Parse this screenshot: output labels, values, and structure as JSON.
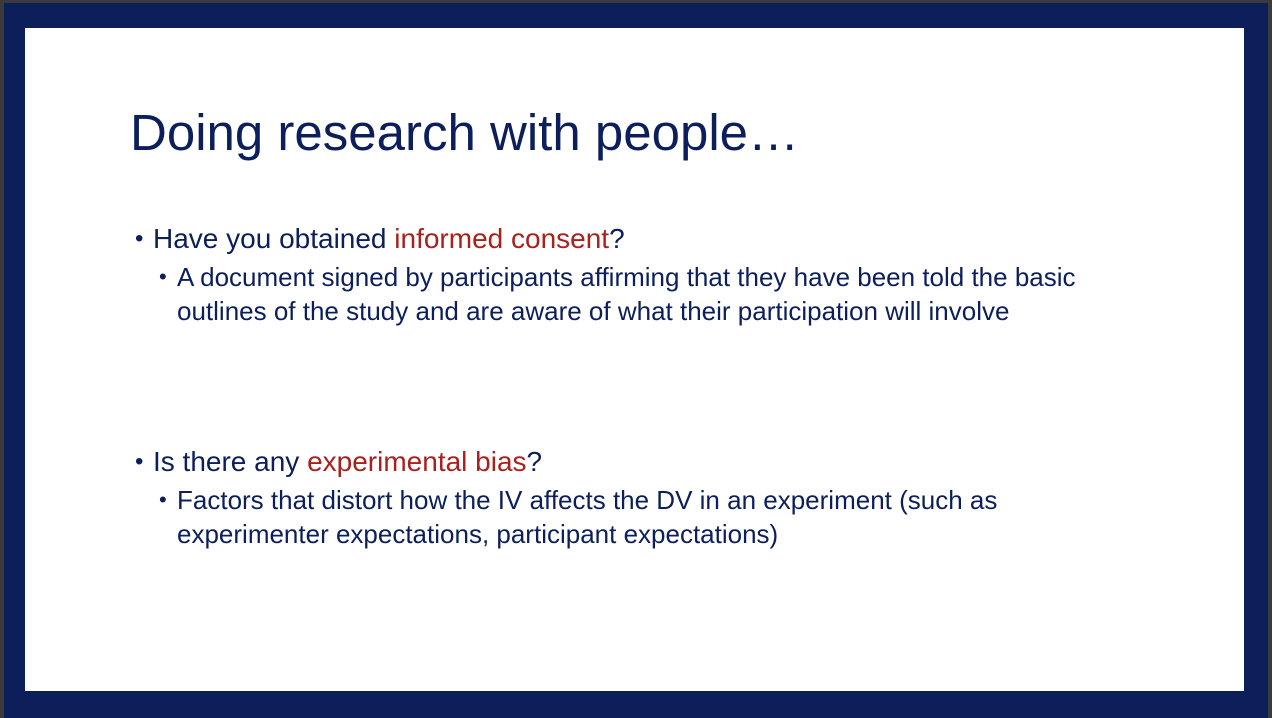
{
  "slide": {
    "title": "Doing research with people…",
    "accent_color": "#a9211c",
    "text_color": "#0c1f5b",
    "frame_color": "#0c1f5b",
    "bullets": [
      {
        "prefix": "Have you obtained ",
        "highlight": "informed consent",
        "suffix": "?",
        "sub": "A document signed by participants affirming that they have been told the basic outlines of the study and are aware of what their participation will involve"
      },
      {
        "prefix": "Is there any ",
        "highlight": "experimental bias",
        "suffix": "?",
        "sub": "Factors that distort how the IV affects the DV in an experiment (such as experimenter expectations, participant expectations)"
      }
    ]
  }
}
